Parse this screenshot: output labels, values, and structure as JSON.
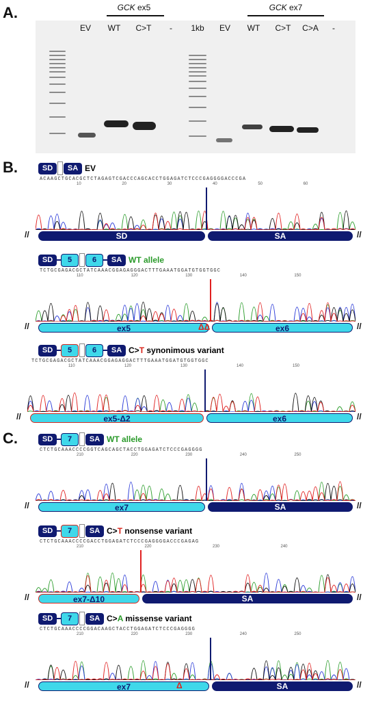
{
  "panelA": {
    "letter": "A.",
    "ex5_label_gene": "GCK",
    "ex5_label_exon": " ex5",
    "ex7_label_gene": "GCK",
    "ex7_label_exon": " ex7",
    "lanes_left": [
      "EV",
      "WT",
      "C>T",
      "-"
    ],
    "lanes_right": [
      "1kb",
      "EV",
      "WT",
      "C>T",
      "C>A",
      "-"
    ]
  },
  "panelB": {
    "letter": "B.",
    "tracks": [
      {
        "status": "EV",
        "seq": "ACAAGCTGCACGCTCTAGAGTCGACCCAGCACCTGGAGATCTCCCGAGGGGACCCGA",
        "positions": [
          "10",
          "20",
          "30",
          "40",
          "50",
          "60"
        ],
        "bar_left": "SD",
        "bar_right": "SA"
      },
      {
        "status": "WT allele",
        "seq": "TCTGCGAGACGCTATCAAACGGAGAGGGACTTTGAAATGGATGTGGTGGC",
        "positions": [
          "110",
          "120",
          "130",
          "140",
          "150"
        ],
        "bar_left": "ex5",
        "bar_right": "ex6",
        "box_mid1": "5",
        "box_mid2": "6",
        "delta_mark": "ΔΔ"
      },
      {
        "status_prefix": "C>",
        "status_letter": "T",
        "status_suffix": " synonimous variant",
        "seq": "TCTGCGAGACGCTATCAAACGGAGAGGACTTTGAAATGGATGTGGTGGC",
        "positions": [
          "110",
          "120",
          "130",
          "140",
          "150"
        ],
        "bar_left": "ex5-Δ2",
        "bar_right": "ex6",
        "box_mid1": "5",
        "box_mid2": "6"
      }
    ]
  },
  "panelC": {
    "letter": "C.",
    "tracks": [
      {
        "status": "WT allele",
        "seq": "CTCTGCAAACCCCGGTCAGCAGCTACCTGGAGATCTCCCGAGGGG",
        "positions": [
          "210",
          "220",
          "230",
          "240",
          "250"
        ],
        "bar_left": "ex7",
        "bar_right": "SA",
        "box_mid": "7"
      },
      {
        "status_prefix": "C>",
        "status_letter": "T",
        "status_suffix": " nonsense variant",
        "seq": "CTCTGCAAACCCCGACCTGGAGATCTCCCGAGGGGACCCGAGAG",
        "positions": [
          "210",
          "220",
          "230",
          "240"
        ],
        "bar_left": "ex7-Δ10",
        "bar_right": "SA",
        "box_mid": "7"
      },
      {
        "status_prefix": "C>",
        "status_letter": "A",
        "status_suffix": " missense variant",
        "seq": "CTCTGCAAACCCCGGACAAGCTACCTGGAGATCTCCCGAGGGG",
        "positions": [
          "210",
          "220",
          "230",
          "240",
          "250"
        ],
        "bar_left": "ex7",
        "bar_right": "SA",
        "box_mid": "7",
        "delta_mark": "Δ"
      }
    ]
  },
  "box_sd": "SD",
  "box_sa": "SA",
  "slash": "//",
  "colors": {
    "A": "#2e9e2e",
    "C": "#2a3ad8",
    "G": "#111111",
    "T": "#e02020",
    "dark": "#0f1a70",
    "light": "#3fd8ea"
  }
}
